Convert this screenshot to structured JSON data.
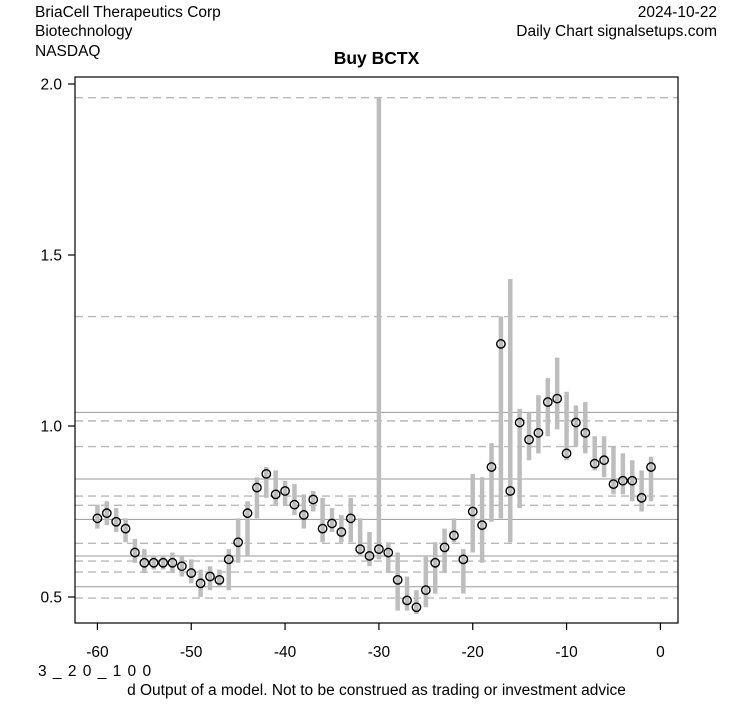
{
  "header": {
    "company": "BriaCell Therapeutics Corp",
    "industry": "Biotechnology",
    "exchange": "NASDAQ",
    "date": "2024-10-22",
    "chart_label": "Daily Chart signalsetups.com"
  },
  "title": "Buy BCTX",
  "footer": {
    "code": "3 _ 2 0 _ 1 0 0",
    "disclaimer": "d Output of a model. Not to be construed as trading or investment advice"
  },
  "chart_data": {
    "type": "scatter",
    "subtype": "daily-high-low-range-with-open-circle-points",
    "title": "Buy BCTX",
    "xlabel": "",
    "ylabel": "",
    "x_ticks": [
      -60,
      -50,
      -40,
      -30,
      -20,
      -10,
      0
    ],
    "y_ticks": [
      0.5,
      1.0,
      1.5,
      2.0
    ],
    "xlim": [
      -62.3,
      1.9
    ],
    "ylim": [
      0.42,
      2.02
    ],
    "grid": {
      "solid_levels": [
        1.04,
        0.845,
        0.727,
        0.62,
        0.53
      ],
      "dashed_levels": [
        1.96,
        1.32,
        1.015,
        0.94,
        0.795,
        0.768,
        0.657,
        0.605,
        0.573,
        0.497
      ]
    },
    "x": [
      -60,
      -59,
      -58,
      -57,
      -56,
      -55,
      -54,
      -53,
      -52,
      -51,
      -50,
      -49,
      -48,
      -47,
      -46,
      -45,
      -44,
      -43,
      -42,
      -41,
      -40,
      -39,
      -38,
      -37,
      -36,
      -35,
      -34,
      -33,
      -32,
      -31,
      -30,
      -29,
      -28,
      -27,
      -26,
      -25,
      -24,
      -23,
      -22,
      -21,
      -20,
      -19,
      -18,
      -17,
      -16,
      -15,
      -14,
      -13,
      -12,
      -11,
      -10,
      -9,
      -8,
      -7,
      -6,
      -5,
      -4,
      -3,
      -2,
      -1
    ],
    "series": [
      {
        "name": "daily-range",
        "type": "high-low-bar",
        "low": [
          0.7,
          0.71,
          0.69,
          0.66,
          0.6,
          0.57,
          0.58,
          0.58,
          0.57,
          0.56,
          0.54,
          0.5,
          0.52,
          0.53,
          0.52,
          0.6,
          0.62,
          0.73,
          0.79,
          0.77,
          0.77,
          0.74,
          0.7,
          0.75,
          0.66,
          0.69,
          0.66,
          0.66,
          0.62,
          0.59,
          0.61,
          0.57,
          0.46,
          0.46,
          0.45,
          0.47,
          0.51,
          0.57,
          0.66,
          0.51,
          0.63,
          0.6,
          0.72,
          0.73,
          0.66,
          0.76,
          0.9,
          0.92,
          0.97,
          0.99,
          0.9,
          0.94,
          0.92,
          0.87,
          0.85,
          0.8,
          0.8,
          0.78,
          0.75,
          0.78
        ],
        "high": [
          0.77,
          0.78,
          0.76,
          0.73,
          0.67,
          0.64,
          0.62,
          0.62,
          0.63,
          0.62,
          0.61,
          0.58,
          0.59,
          0.58,
          0.64,
          0.73,
          0.78,
          0.85,
          0.88,
          0.87,
          0.84,
          0.83,
          0.8,
          0.81,
          0.79,
          0.76,
          0.74,
          0.79,
          0.73,
          0.69,
          1.96,
          0.66,
          0.63,
          0.56,
          0.52,
          0.62,
          0.66,
          0.7,
          0.73,
          0.64,
          0.86,
          0.85,
          0.95,
          1.32,
          1.43,
          1.05,
          1.04,
          1.09,
          1.14,
          1.2,
          1.1,
          1.06,
          1.07,
          0.97,
          0.97,
          0.94,
          0.92,
          0.9,
          0.87,
          0.91
        ]
      },
      {
        "name": "model-price-point",
        "type": "open-circle",
        "values": [
          0.73,
          0.745,
          0.72,
          0.7,
          0.63,
          0.6,
          0.6,
          0.6,
          0.6,
          0.59,
          0.57,
          0.54,
          0.56,
          0.55,
          0.61,
          0.66,
          0.745,
          0.82,
          0.86,
          0.8,
          0.81,
          0.77,
          0.74,
          0.785,
          0.7,
          0.715,
          0.69,
          0.73,
          0.64,
          0.62,
          0.64,
          0.63,
          0.55,
          0.49,
          0.47,
          0.52,
          0.6,
          0.645,
          0.68,
          0.61,
          0.75,
          0.71,
          0.88,
          1.24,
          0.81,
          1.01,
          0.96,
          0.98,
          1.07,
          1.08,
          0.92,
          1.01,
          0.98,
          0.89,
          0.9,
          0.83,
          0.84,
          0.84,
          0.79,
          0.88
        ]
      }
    ],
    "legend": null,
    "colors": {
      "background": "#ffffff",
      "text": "#000000",
      "bar": "#bdbdbd",
      "point_stroke": "#000000",
      "grid_solid": "#9a9a9a",
      "grid_dashed": "#b8b8b8",
      "axis": "#000000"
    }
  }
}
